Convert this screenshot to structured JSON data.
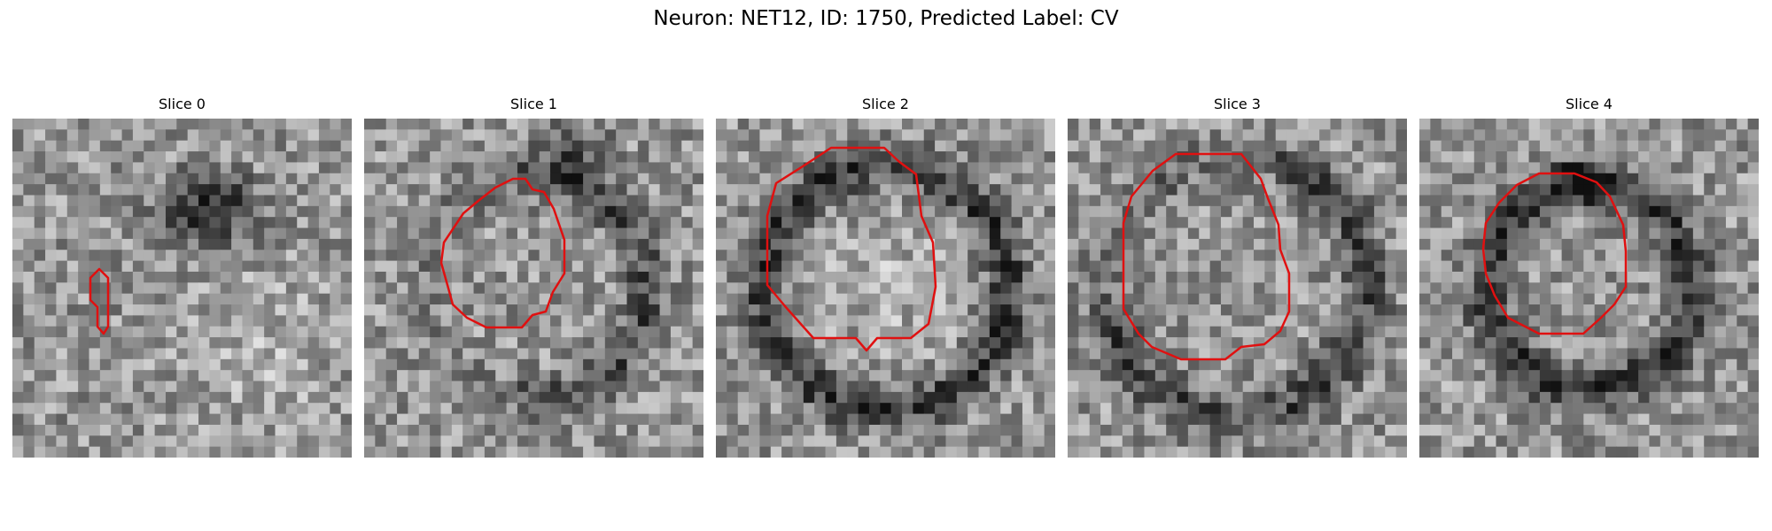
{
  "figure": {
    "title": "Neuron: NET12, ID: 1750, Predicted Label: CV",
    "contour_color": "#e01010",
    "colormap": "gray",
    "slices": [
      {
        "title": "Slice 0",
        "seed": 11,
        "ring": "dark-blob-top",
        "contour_kind": "small"
      },
      {
        "title": "Slice 1",
        "seed": 23,
        "ring": "dark-arc-right",
        "contour_kind": "medium"
      },
      {
        "title": "Slice 2",
        "seed": 37,
        "ring": "full-ring",
        "contour_kind": "large"
      },
      {
        "title": "Slice 3",
        "seed": 53,
        "ring": "partial-ring",
        "contour_kind": "large-tall"
      },
      {
        "title": "Slice 4",
        "seed": 71,
        "ring": "full-ring-dark",
        "contour_kind": "large-round"
      }
    ]
  }
}
